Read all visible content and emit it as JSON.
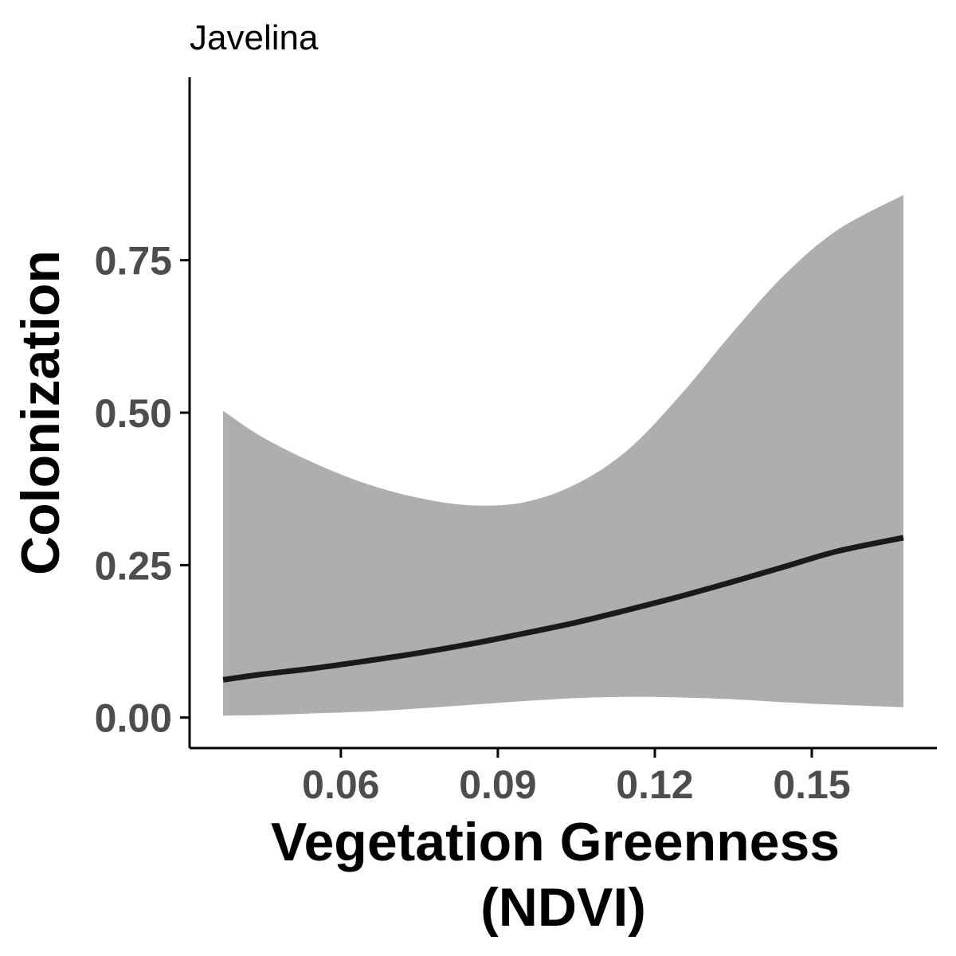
{
  "chart_data": {
    "type": "line",
    "title": "Javelina",
    "xlabel": [
      "Vegetation Greenness",
      "(NDVI)"
    ],
    "ylabel": "Colonization",
    "xlim": [
      0.0311,
      0.1739
    ],
    "ylim": [
      -0.05,
      1.05
    ],
    "x_ticks": [
      0.06,
      0.09,
      0.12,
      0.15
    ],
    "x_tick_labels": [
      "0.06",
      "0.09",
      "0.12",
      "0.15"
    ],
    "y_ticks": [
      0.0,
      0.25,
      0.5,
      0.75
    ],
    "y_tick_labels": [
      "0.00",
      "0.25",
      "0.50",
      "0.75"
    ],
    "grid": false,
    "colors": {
      "line": "#1a1a1a",
      "ribbon": "#aeaeae",
      "axis": "#000000",
      "tick_label": "#4d4d4d"
    },
    "series": [
      {
        "x": [
          0.0375,
          0.045,
          0.055,
          0.065,
          0.075,
          0.085,
          0.095,
          0.105,
          0.115,
          0.125,
          0.135,
          0.145,
          0.155,
          0.1675
        ],
        "fit": [
          0.062,
          0.071,
          0.081,
          0.093,
          0.106,
          0.121,
          0.138,
          0.156,
          0.177,
          0.199,
          0.223,
          0.248,
          0.273,
          0.295
        ],
        "lower": [
          0.003,
          0.004,
          0.007,
          0.01,
          0.015,
          0.021,
          0.027,
          0.032,
          0.034,
          0.033,
          0.03,
          0.025,
          0.021,
          0.017
        ],
        "upper": [
          0.503,
          0.46,
          0.417,
          0.383,
          0.36,
          0.348,
          0.353,
          0.383,
          0.44,
          0.53,
          0.633,
          0.728,
          0.8,
          0.857
        ]
      }
    ]
  }
}
